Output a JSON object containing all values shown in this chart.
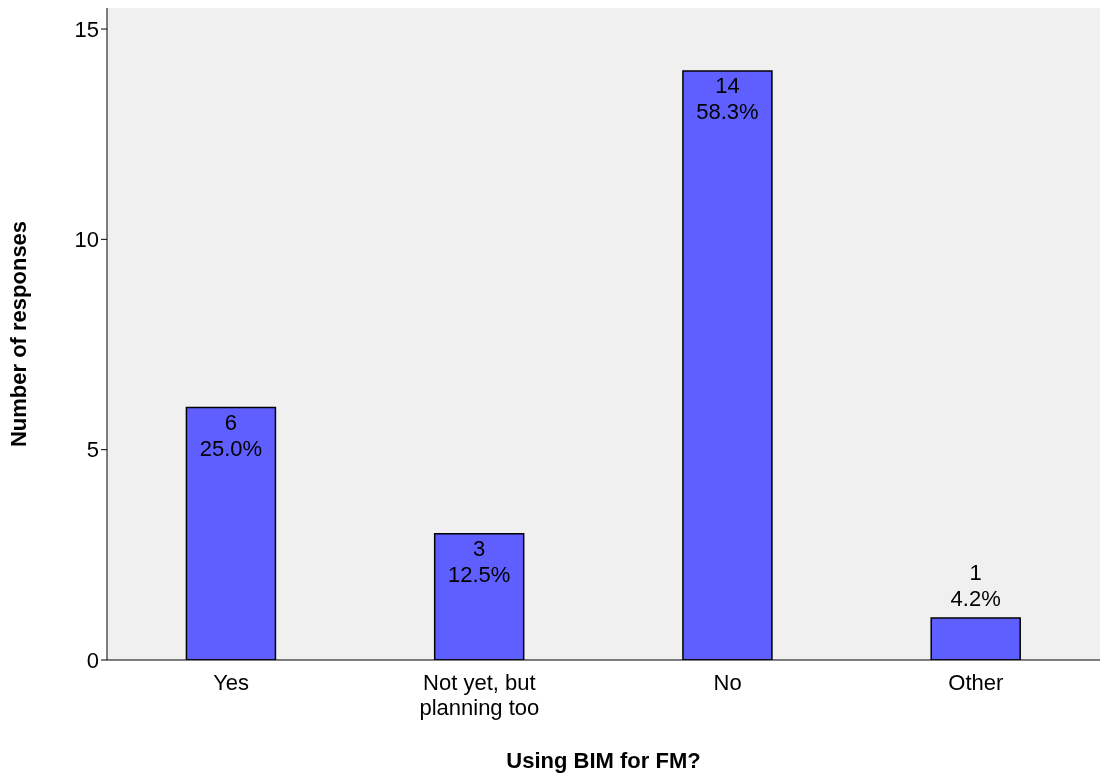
{
  "chart_data": {
    "type": "bar",
    "xlabel": "Using BIM for FM?",
    "ylabel": "Number of responses",
    "categories": [
      "Yes",
      "Not yet, but planning too",
      "No",
      "Other"
    ],
    "values": [
      6,
      3,
      14,
      1
    ],
    "color": "#5f5fff",
    "value_labels": [
      "6\n25.0%",
      "3\n12.5%",
      "14\n58.3%",
      "1\n4.2%"
    ],
    "ylim": [
      0,
      15.5
    ],
    "yticks": [
      0,
      5,
      10,
      15
    ],
    "grid": false,
    "legend": false
  }
}
